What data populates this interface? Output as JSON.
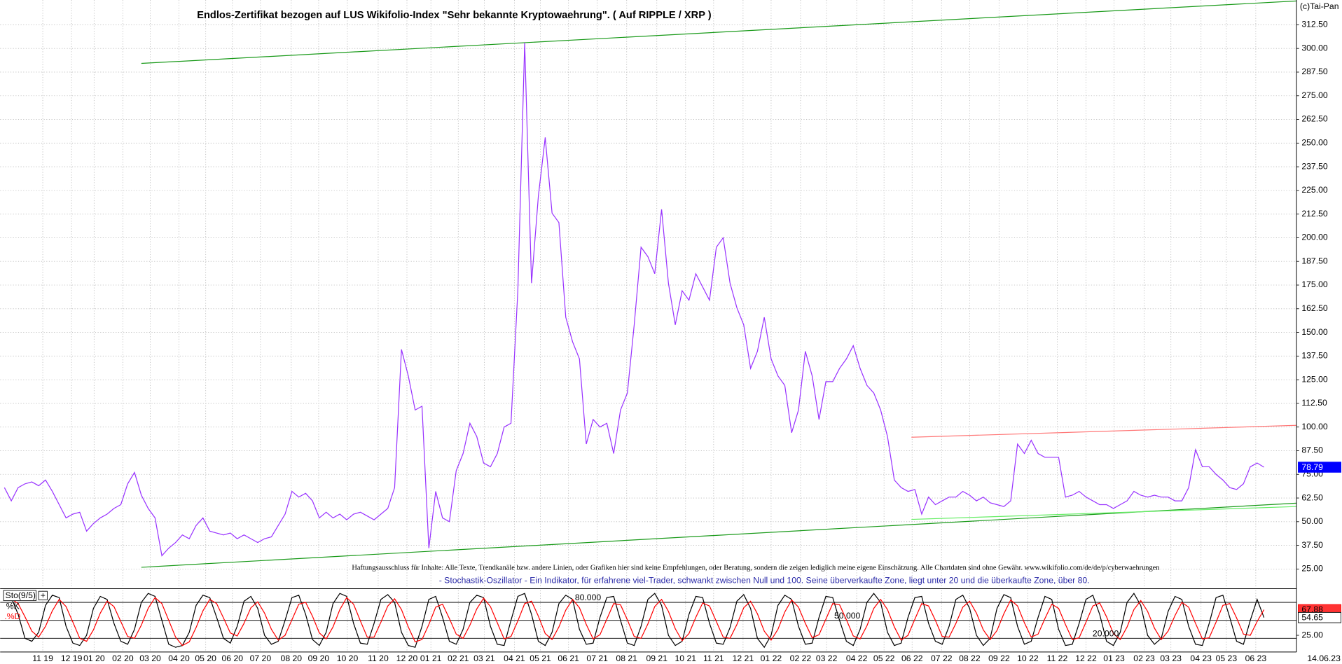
{
  "chart_data": [
    {
      "type": "line",
      "title": "Endlos-Zertifikat bezogen auf LUS Wikifolio-Index \"Sehr bekannte Kryptowaehrung\". ( Auf RIPPLE / XRP )",
      "copyright": "(c)Tai-Pan",
      "color": "#9933ff",
      "values": [
        68,
        61,
        68,
        70,
        71,
        69,
        72,
        66,
        59,
        52,
        54,
        55,
        45,
        49,
        52,
        54,
        57,
        59,
        70,
        76,
        64,
        57,
        52,
        32,
        36,
        39,
        43,
        41,
        48,
        52,
        45,
        44,
        43,
        44,
        41,
        43,
        41,
        39,
        41,
        42,
        48,
        54,
        66,
        63,
        65,
        61,
        52,
        55,
        52,
        54,
        51,
        54,
        55,
        53,
        51,
        54,
        57,
        68,
        141,
        127,
        109,
        111,
        36,
        66,
        52,
        50,
        77,
        86,
        102,
        95,
        81,
        79,
        86,
        100,
        102,
        172,
        303,
        176,
        222,
        253,
        213,
        208,
        158,
        145,
        136,
        91,
        104,
        100,
        102,
        86,
        109,
        118,
        154,
        195,
        190,
        181,
        215,
        176,
        154,
        172,
        167,
        181,
        174,
        167,
        195,
        200,
        176,
        163,
        154,
        131,
        140,
        158,
        136,
        127,
        122,
        97,
        109,
        140,
        127,
        104,
        124,
        124,
        131,
        136,
        143,
        131,
        122,
        118,
        109,
        95,
        72,
        68,
        66,
        67,
        54,
        63,
        59,
        61,
        63,
        63,
        66,
        64,
        61,
        63,
        60,
        59,
        58,
        61,
        91,
        86,
        93,
        86,
        84,
        84,
        84,
        63,
        64,
        66,
        63,
        61,
        59,
        59,
        57,
        59,
        61,
        66,
        64,
        63,
        64,
        63,
        63,
        61,
        61,
        68,
        88,
        79,
        79,
        75,
        72,
        68,
        67,
        70,
        79,
        81,
        78.79
      ],
      "xlim": [
        -0.625,
        188.75
      ],
      "ylim": [
        15.5,
        325.6
      ],
      "yticks": [
        {
          "value": 25,
          "label": "25.00"
        },
        {
          "value": 37.5,
          "label": "37.50"
        },
        {
          "value": 50,
          "label": "50.00"
        },
        {
          "value": 62.5,
          "label": "62.50"
        },
        {
          "value": 75,
          "label": "75.00"
        },
        {
          "value": 87.5,
          "label": "87.50"
        },
        {
          "value": 100,
          "label": "100.00"
        },
        {
          "value": 112.5,
          "label": "112.50"
        },
        {
          "value": 125,
          "label": "125.00"
        },
        {
          "value": 137.5,
          "label": "137.50"
        },
        {
          "value": 150,
          "label": "150.00"
        },
        {
          "value": 162.5,
          "label": "162.50"
        },
        {
          "value": 175,
          "label": "175.00"
        },
        {
          "value": 187.5,
          "label": "187.50"
        },
        {
          "value": 200,
          "label": "200.00"
        },
        {
          "value": 212.5,
          "label": "212.50"
        },
        {
          "value": 225,
          "label": "225.00"
        },
        {
          "value": 237.5,
          "label": "237.50"
        },
        {
          "value": 250,
          "label": "250.00"
        },
        {
          "value": 262.5,
          "label": "262.50"
        },
        {
          "value": 275,
          "label": "275.00"
        },
        {
          "value": 287.5,
          "label": "287.50"
        },
        {
          "value": 300,
          "label": "300.00"
        },
        {
          "value": 312.5,
          "label": "312.50"
        }
      ],
      "xticks": [
        {
          "value": 5.6,
          "label": "11 19"
        },
        {
          "value": 9.8,
          "label": "12 19"
        },
        {
          "value": 13.1,
          "label": "01 20"
        },
        {
          "value": 17.3,
          "label": "02 20"
        },
        {
          "value": 21.3,
          "label": "03 20"
        },
        {
          "value": 25.5,
          "label": "04 20"
        },
        {
          "value": 29.4,
          "label": "05 20"
        },
        {
          "value": 33.3,
          "label": "06 20"
        },
        {
          "value": 37.4,
          "label": "07 20"
        },
        {
          "value": 41.9,
          "label": "08 20"
        },
        {
          "value": 45.9,
          "label": "09 20"
        },
        {
          "value": 50.1,
          "label": "10 20"
        },
        {
          "value": 54.6,
          "label": "11 20"
        },
        {
          "value": 58.8,
          "label": "12 20"
        },
        {
          "value": 62.3,
          "label": "01 21"
        },
        {
          "value": 66.3,
          "label": "02 21"
        },
        {
          "value": 70.1,
          "label": "03 21"
        },
        {
          "value": 74.5,
          "label": "04 21"
        },
        {
          "value": 78.3,
          "label": "05 21"
        },
        {
          "value": 82.4,
          "label": "06 21"
        },
        {
          "value": 86.6,
          "label": "07 21"
        },
        {
          "value": 90.9,
          "label": "08 21"
        },
        {
          "value": 95.3,
          "label": "09 21"
        },
        {
          "value": 99.5,
          "label": "10 21"
        },
        {
          "value": 103.6,
          "label": "11 21"
        },
        {
          "value": 107.9,
          "label": "12 21"
        },
        {
          "value": 112,
          "label": "01 22"
        },
        {
          "value": 116.3,
          "label": "02 22"
        },
        {
          "value": 120.1,
          "label": "03 22"
        },
        {
          "value": 124.5,
          "label": "04 22"
        },
        {
          "value": 128.5,
          "label": "05 22"
        },
        {
          "value": 132.6,
          "label": "06 22"
        },
        {
          "value": 136.9,
          "label": "07 22"
        },
        {
          "value": 141,
          "label": "08 22"
        },
        {
          "value": 145.3,
          "label": "09 22"
        },
        {
          "value": 149.5,
          "label": "10 22"
        },
        {
          "value": 153.8,
          "label": "11 22"
        },
        {
          "value": 158,
          "label": "12 22"
        },
        {
          "value": 162.1,
          "label": "01 23"
        },
        {
          "value": 166.5,
          "label": "02 23"
        },
        {
          "value": 170.4,
          "label": "03 23"
        },
        {
          "value": 174.8,
          "label": "04 23"
        },
        {
          "value": 178.5,
          "label": "05 23"
        },
        {
          "value": 182.8,
          "label": "06 23"
        }
      ],
      "last_date": "14.06.23",
      "grid": true,
      "trendlines": [
        {
          "color": "#1a9a1a",
          "x": [
            20,
            188.75
          ],
          "y": [
            292.1,
            325.1
          ]
        },
        {
          "color": "#1a9a1a",
          "x": [
            20,
            188.75
          ],
          "y": [
            25.9,
            59.8
          ]
        },
        {
          "color": "#66ee66",
          "x": [
            132.5,
            188.75
          ],
          "y": [
            51.2,
            58
          ]
        },
        {
          "color": "#ff7777",
          "x": [
            132.5,
            188.75
          ],
          "y": [
            94.6,
            100.9
          ]
        }
      ],
      "notes": [
        "Haftungsausschluss für Inhalte: Alle Texte, Trendkanäle bzw. andere Linien, oder Grafiken hier sind keine Empfehlungen, oder Beratung, sondern die zeigen lediglich meine eigene Einschätzung. Alle Chartdaten sind ohne Gewähr. www.wikifolio.com/de/de/p/cyberwaehrungen",
        "- Stochastik-Oszillator - Ein Indikator, für erfahrene viel-Trader, schwankt zwischen Null und 100. Seine überverkaufte Zone, liegt unter 20 und die überkaufte Zone, über 80."
      ]
    },
    {
      "type": "line",
      "title": "Sto(9/5)",
      "series": [
        {
          "name": "%K",
          "color": "#000000",
          "values": [
            85,
            88,
            60,
            20,
            15,
            30,
            75,
            92,
            88,
            40,
            12,
            8,
            25,
            70,
            90,
            85,
            45,
            15,
            10,
            35,
            80,
            95,
            90,
            50,
            10,
            5,
            8,
            30,
            75,
            92,
            88,
            55,
            20,
            12,
            40,
            82,
            90,
            70,
            25,
            10,
            15,
            50,
            88,
            92,
            60,
            18,
            8,
            30,
            78,
            95,
            90,
            45,
            12,
            10,
            45,
            85,
            93,
            80,
            30,
            8,
            5,
            40,
            85,
            90,
            55,
            15,
            10,
            35,
            80,
            92,
            88,
            40,
            10,
            8,
            50,
            90,
            95,
            60,
            15,
            8,
            30,
            78,
            92,
            85,
            35,
            10,
            12,
            55,
            88,
            90,
            50,
            12,
            8,
            40,
            85,
            95,
            75,
            25,
            8,
            15,
            60,
            90,
            88,
            45,
            12,
            10,
            38,
            82,
            93,
            70,
            20,
            5,
            25,
            75,
            92,
            85,
            40,
            10,
            12,
            55,
            90,
            88,
            50,
            15,
            8,
            35,
            80,
            95,
            80,
            30,
            8,
            12,
            55,
            88,
            90,
            45,
            15,
            10,
            40,
            85,
            92,
            70,
            25,
            8,
            20,
            70,
            93,
            88,
            40,
            10,
            15,
            55,
            90,
            85,
            35,
            8,
            10,
            45,
            85,
            92,
            60,
            15,
            8,
            30,
            80,
            95,
            75,
            25,
            10,
            20,
            65,
            90,
            85,
            40,
            10,
            8,
            45,
            88,
            92,
            55,
            15,
            10,
            50,
            85,
            54.65
          ]
        },
        {
          "name": ".%D",
          "color": "#ff0000",
          "values": [
            85,
            86,
            78,
            56,
            32,
            22,
            40,
            66,
            85,
            73,
            47,
            20,
            15,
            34,
            62,
            82,
            73,
            48,
            23,
            20,
            42,
            70,
            88,
            78,
            50,
            22,
            8,
            14,
            38,
            66,
            85,
            78,
            54,
            29,
            24,
            45,
            71,
            81,
            62,
            35,
            17,
            25,
            51,
            77,
            80,
            57,
            29,
            19,
            39,
            68,
            88,
            77,
            49,
            22,
            22,
            47,
            74,
            86,
            68,
            39,
            14,
            18,
            43,
            72,
            77,
            53,
            27,
            20,
            42,
            69,
            87,
            73,
            46,
            19,
            23,
            49,
            78,
            82,
            57,
            28,
            18,
            39,
            67,
            85,
            71,
            43,
            19,
            26,
            52,
            78,
            76,
            51,
            23,
            20,
            44,
            73,
            85,
            65,
            36,
            16,
            28,
            55,
            79,
            74,
            48,
            22,
            20,
            43,
            71,
            82,
            61,
            32,
            17,
            35,
            64,
            84,
            72,
            45,
            21,
            26,
            52,
            78,
            76,
            51,
            24,
            19,
            41,
            70,
            85,
            68,
            39,
            17,
            25,
            52,
            78,
            74,
            50,
            23,
            22,
            45,
            72,
            82,
            62,
            34,
            18,
            33,
            61,
            84,
            74,
            46,
            22,
            27,
            53,
            77,
            70,
            43,
            18,
            21,
            47,
            74,
            79,
            56,
            28,
            18,
            39,
            68,
            83,
            65,
            37,
            18,
            32,
            58,
            80,
            72,
            45,
            19,
            21,
            47,
            75,
            78,
            54,
            27,
            25,
            48,
            67.88
          ]
        }
      ],
      "xlim": [
        -0.625,
        188.75
      ],
      "ylim": [
        -2.9,
        100
      ],
      "yticks": [
        {
          "value": 25,
          "label": "25.00"
        }
      ],
      "levels": [
        {
          "value": 80,
          "label": "80.000"
        },
        {
          "value": 50,
          "label": "50.000"
        },
        {
          "value": 20,
          "label": "20.000"
        }
      ]
    }
  ]
}
